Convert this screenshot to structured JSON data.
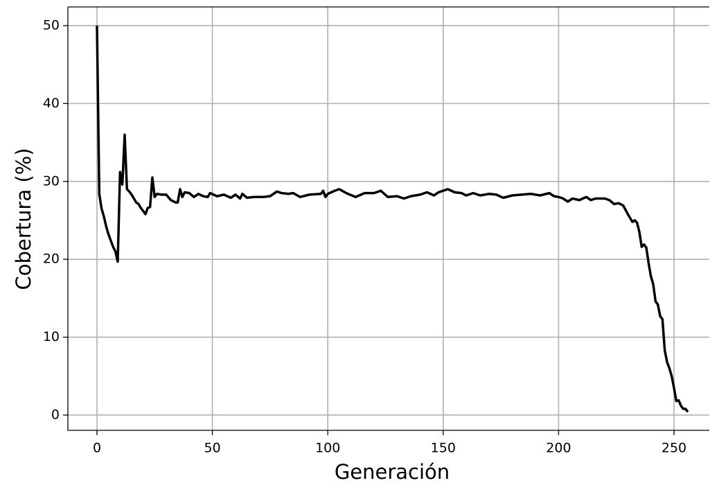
{
  "chart_data": {
    "type": "line",
    "xlabel": "Generación",
    "ylabel": "Cobertura (%)",
    "x": [
      0,
      1,
      2,
      3,
      4,
      5,
      6,
      7,
      8,
      9,
      10,
      11,
      12,
      13,
      14,
      15,
      16,
      17,
      18,
      19,
      20,
      21,
      22,
      23,
      24,
      25,
      26,
      28,
      30,
      32,
      34,
      35,
      36,
      37,
      38,
      40,
      42,
      44,
      46,
      48,
      49,
      52,
      55,
      58,
      60,
      62,
      63,
      65,
      68,
      72,
      75,
      78,
      80,
      83,
      85,
      88,
      92,
      97,
      98,
      99,
      100,
      103,
      105,
      108,
      112,
      116,
      120,
      123,
      126,
      130,
      133,
      136,
      140,
      143,
      146,
      148,
      150,
      152,
      155,
      158,
      160,
      163,
      166,
      170,
      173,
      176,
      180,
      184,
      188,
      192,
      196,
      198,
      200,
      202,
      204,
      206,
      209,
      212,
      214,
      216,
      220,
      222,
      224,
      226,
      228,
      230,
      232,
      233,
      234,
      235,
      236,
      237,
      238,
      239,
      240,
      241,
      242,
      243,
      244,
      245,
      246,
      247,
      248,
      249,
      250,
      251,
      252,
      253,
      254,
      255,
      256
    ],
    "series": [
      {
        "color": "#000000",
        "values": [
          50,
          28.4,
          26.5,
          25.5,
          24.2,
          23.2,
          22.4,
          21.6,
          21.0,
          19.7,
          31.2,
          29.6,
          36.0,
          29.0,
          28.7,
          28.3,
          27.8,
          27.3,
          27.1,
          26.6,
          26.2,
          25.8,
          26.6,
          26.7,
          30.5,
          28.0,
          28.4,
          28.3,
          28.3,
          27.6,
          27.3,
          27.3,
          29.0,
          28.0,
          28.6,
          28.5,
          28.0,
          28.4,
          28.1,
          28.0,
          28.5,
          28.1,
          28.3,
          27.9,
          28.3,
          27.8,
          28.4,
          27.9,
          28.0,
          28.0,
          28.1,
          28.7,
          28.5,
          28.4,
          28.5,
          28.0,
          28.3,
          28.4,
          28.8,
          28.0,
          28.4,
          28.8,
          29.0,
          28.5,
          28.0,
          28.5,
          28.5,
          28.8,
          28.0,
          28.1,
          27.8,
          28.1,
          28.3,
          28.6,
          28.2,
          28.6,
          28.8,
          29.0,
          28.6,
          28.5,
          28.2,
          28.5,
          28.2,
          28.4,
          28.3,
          27.9,
          28.2,
          28.3,
          28.4,
          28.2,
          28.5,
          28.1,
          28.0,
          27.8,
          27.4,
          27.8,
          27.6,
          28.0,
          27.6,
          27.8,
          27.8,
          27.6,
          27.1,
          27.2,
          26.9,
          25.8,
          24.8,
          25.0,
          24.7,
          23.5,
          21.6,
          21.9,
          21.5,
          19.5,
          17.8,
          16.8,
          14.6,
          14.2,
          12.7,
          12.3,
          8.3,
          6.8,
          6.0,
          5.0,
          3.5,
          1.8,
          1.9,
          1.2,
          0.8,
          0.8,
          0.4
        ]
      }
    ],
    "xlim": [
      -12.6,
      265.3
    ],
    "ylim": [
      -1.96,
      52.4
    ],
    "xticks": [
      0,
      50,
      100,
      150,
      200,
      250
    ],
    "yticks": [
      0,
      10,
      20,
      30,
      40,
      50
    ],
    "grid": true
  }
}
